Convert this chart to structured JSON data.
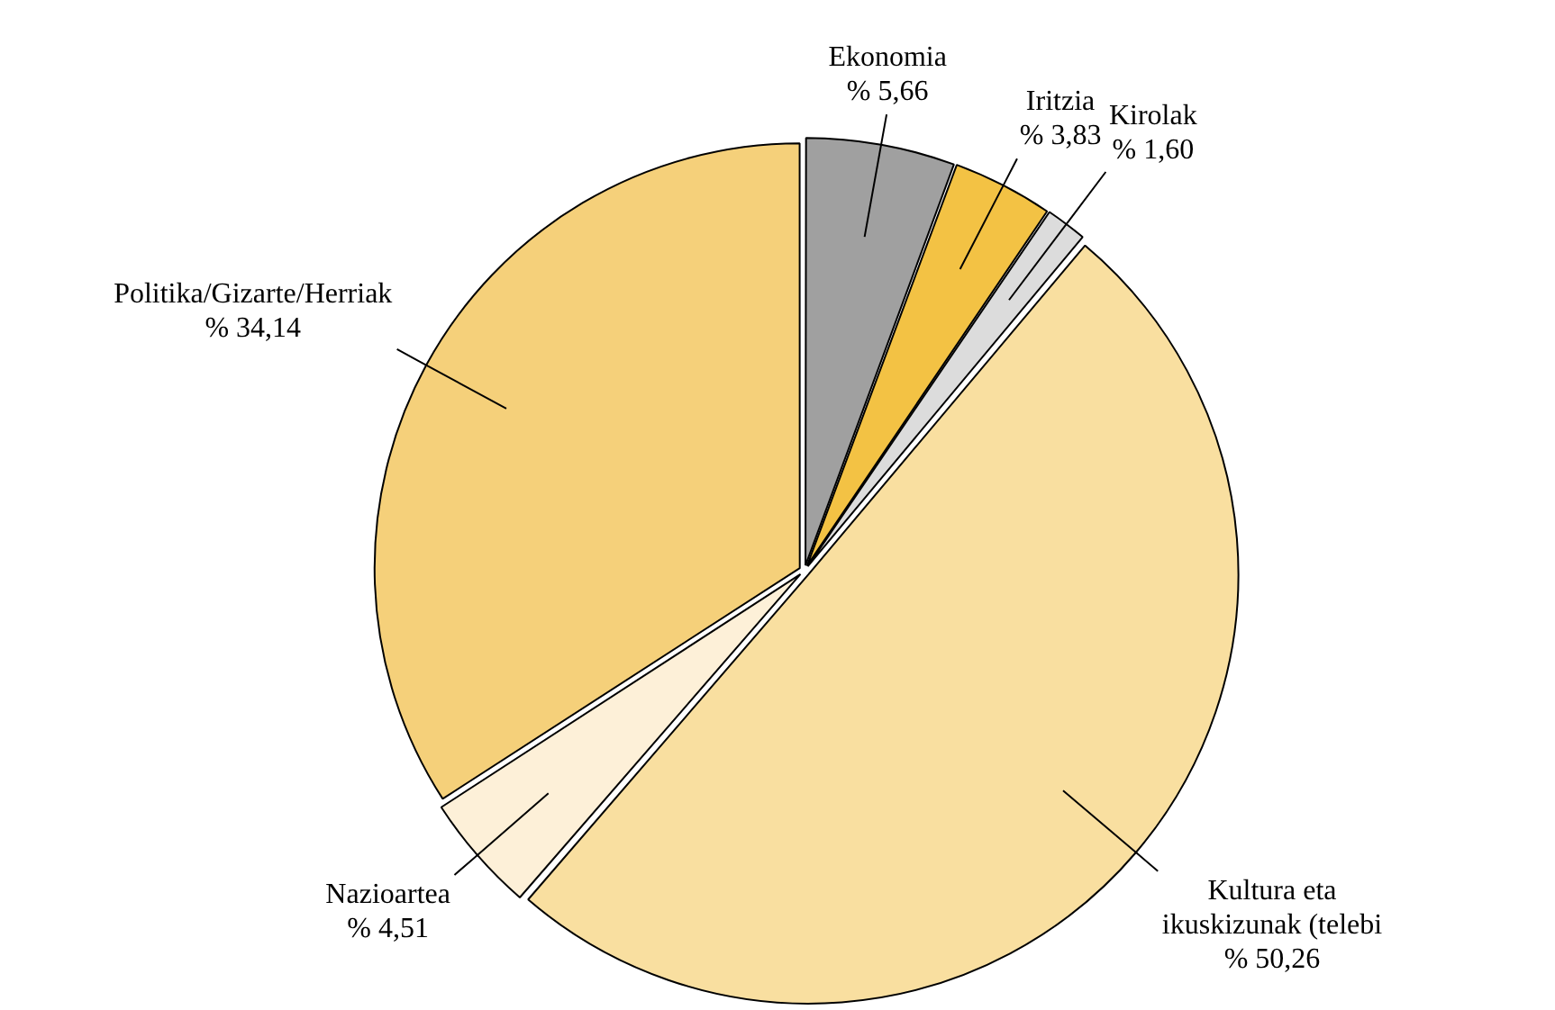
{
  "chart_data": {
    "type": "pie",
    "categories": [
      "Ekonomia",
      "Iritzia",
      "Kirolak",
      "Kultura eta ikuskizunak (telebi",
      "Nazioartea",
      "Politika/Gizarte/Herriak"
    ],
    "values": [
      5.66,
      3.83,
      1.6,
      50.26,
      4.51,
      34.14
    ],
    "value_labels": [
      "% 5,66",
      "% 3,83",
      "% 1,60",
      "% 50,26",
      "% 4,51",
      "% 34,14"
    ],
    "colors": [
      "#a0a0a0",
      "#f3c244",
      "#dcdcdc",
      "#f9dfa0",
      "#fdf0d8",
      "#f5d07a"
    ],
    "legend": false
  }
}
